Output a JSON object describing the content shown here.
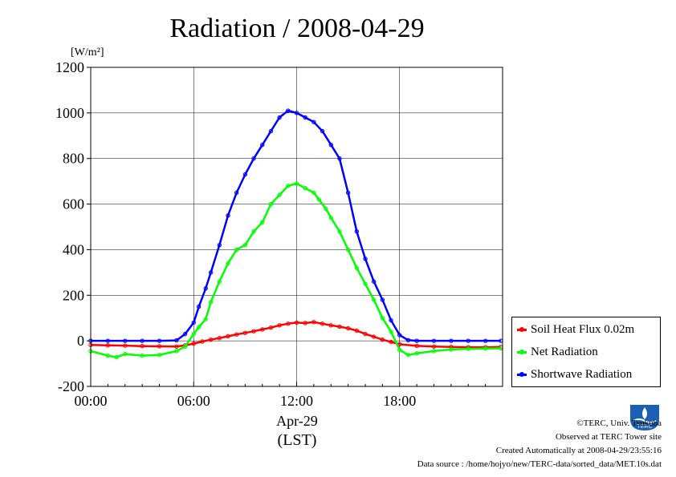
{
  "chart_data": {
    "type": "line",
    "title": "Radiation / 2008-04-29",
    "ylabel_unit": "[W/m²]",
    "xlabel_date": "Apr-29",
    "xlabel_tz": "(LST)",
    "ylim": [
      -200,
      1200
    ],
    "yticks": [
      -200,
      0,
      200,
      400,
      600,
      800,
      1000,
      1200
    ],
    "xlim_hours": [
      0,
      24
    ],
    "xticks": [
      {
        "hour": 0,
        "label": "00:00"
      },
      {
        "hour": 6,
        "label": "06:00"
      },
      {
        "hour": 12,
        "label": "12:00"
      },
      {
        "hour": 18,
        "label": "18:00"
      }
    ],
    "grid": true,
    "legend_position": "right",
    "series": [
      {
        "name": "Soil Heat Flux 0.02m",
        "color": "#ff0000",
        "x": [
          0,
          1,
          2,
          3,
          4,
          5,
          5.5,
          6,
          6.5,
          7,
          7.5,
          8,
          8.5,
          9,
          9.5,
          10,
          10.5,
          11,
          11.5,
          12,
          12.5,
          13,
          13.5,
          14,
          14.5,
          15,
          15.5,
          16,
          16.5,
          17,
          17.5,
          18,
          19,
          20,
          21,
          22,
          23,
          23.9
        ],
        "y": [
          -18,
          -20,
          -21,
          -23,
          -24,
          -25,
          -20,
          -12,
          -3,
          5,
          12,
          20,
          28,
          35,
          42,
          50,
          58,
          68,
          75,
          80,
          78,
          82,
          75,
          68,
          62,
          55,
          45,
          30,
          18,
          5,
          -5,
          -15,
          -22,
          -25,
          -27,
          -28,
          -28,
          -27
        ]
      },
      {
        "name": "Net Radiation",
        "color": "#00ff00",
        "x": [
          0,
          1,
          1.5,
          2,
          3,
          4,
          5,
          5.5,
          6,
          6.3,
          6.7,
          7,
          7.5,
          8,
          8.5,
          9,
          9.5,
          10,
          10.5,
          11,
          11.5,
          12,
          12.5,
          13,
          13.3,
          13.7,
          14,
          14.5,
          15,
          15.5,
          16,
          16.5,
          17,
          17.5,
          18,
          18.5,
          19,
          20,
          21,
          22,
          23,
          23.9
        ],
        "y": [
          -45,
          -65,
          -72,
          -58,
          -65,
          -62,
          -45,
          -25,
          30,
          60,
          95,
          170,
          260,
          340,
          400,
          420,
          480,
          520,
          600,
          640,
          680,
          690,
          670,
          650,
          620,
          580,
          540,
          480,
          400,
          320,
          250,
          180,
          100,
          40,
          -40,
          -62,
          -55,
          -45,
          -38,
          -35,
          -34,
          -33
        ]
      },
      {
        "name": "Shortwave Radiation",
        "color": "#0000ff",
        "x": [
          0,
          1,
          2,
          3,
          4,
          5,
          5.5,
          6,
          6.3,
          6.7,
          7,
          7.5,
          8,
          8.5,
          9,
          9.5,
          10,
          10.5,
          11,
          11.5,
          12,
          12.5,
          13,
          13.5,
          14,
          14.5,
          15,
          15.5,
          16,
          16.5,
          17,
          17.5,
          18,
          18.5,
          19,
          20,
          21,
          22,
          23,
          23.9
        ],
        "y": [
          0,
          0,
          0,
          0,
          0,
          2,
          30,
          80,
          150,
          230,
          300,
          420,
          550,
          650,
          730,
          800,
          860,
          920,
          980,
          1010,
          1000,
          980,
          960,
          920,
          860,
          800,
          650,
          480,
          360,
          260,
          180,
          90,
          25,
          3,
          0,
          0,
          0,
          0,
          0,
          0
        ]
      }
    ]
  },
  "legend": {
    "items": [
      {
        "label": "Soil Heat Flux 0.02m",
        "color": "#ff0000"
      },
      {
        "label": "Net Radiation",
        "color": "#00ff00"
      },
      {
        "label": "Shortwave Radiation",
        "color": "#0000ff"
      }
    ]
  },
  "footer": {
    "copyright": "©TERC, Univ. Tsukuba",
    "site": "Observed at TERC Tower site",
    "created": "Created Automatically at 2008-04-29/23:55:16",
    "source": "Data source : /home/hojyo/new/TERC-data/sorted_data/MET.10s.dat"
  },
  "logo": {
    "text": "TERC",
    "color": "#1a5fb4"
  }
}
